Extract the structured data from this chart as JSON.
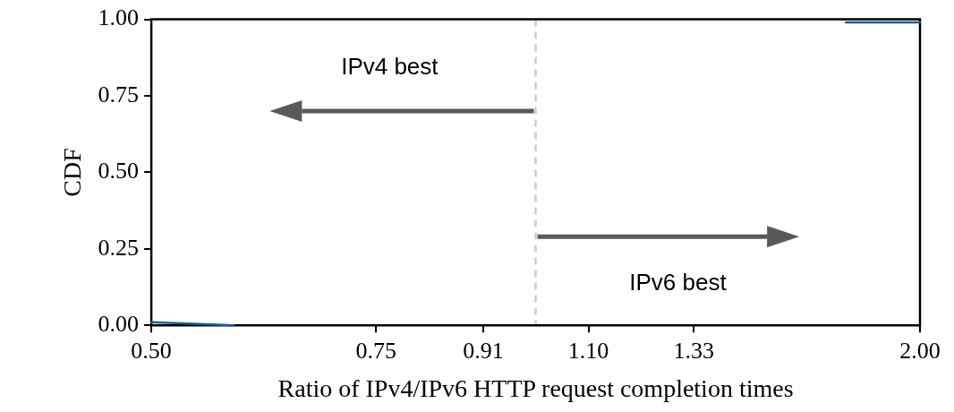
{
  "chart_data": {
    "type": "line",
    "xlabel": "Ratio of IPv4/IPv6 HTTP request completion times",
    "ylabel": "CDF",
    "log": "x",
    "xlim": [
      0.5,
      2.0
    ],
    "ylim": [
      0,
      1
    ],
    "xticks": [
      {
        "value": 0.5,
        "label": "0.50"
      },
      {
        "value": 0.75,
        "label": "0.75"
      },
      {
        "value": 0.91,
        "label": "0.91"
      },
      {
        "value": 1.1,
        "label": "1.10"
      },
      {
        "value": 1.33,
        "label": "1.33"
      },
      {
        "value": 2.0,
        "label": "2.00"
      }
    ],
    "yticks": [
      {
        "value": 0,
        "label": "0.00"
      },
      {
        "value": 0.25,
        "label": "0.25"
      },
      {
        "value": 0.5,
        "label": "0.50"
      },
      {
        "value": 0.75,
        "label": "0.75"
      },
      {
        "value": 1,
        "label": "1.00"
      }
    ],
    "series": [
      {
        "color": "#1f5a96",
        "x": [
          0.5,
          0.58,
          1.0,
          1.75,
          2.0
        ],
        "values": [
          0.01,
          0.0,
          null,
          0.99,
          0.99
        ]
      }
    ],
    "ref_lines": [
      {
        "axis": "x",
        "value": 1.0,
        "color": "#cccccc",
        "line_style": "dashed"
      }
    ],
    "annotations": [
      "IPv4 best",
      "IPv6 best"
    ],
    "grid": false,
    "legend": false,
    "marker": "none"
  }
}
